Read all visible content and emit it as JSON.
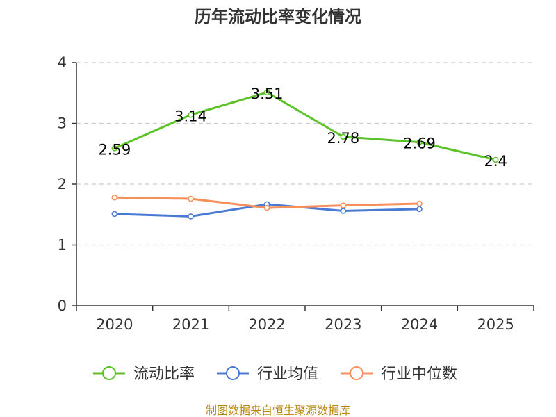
{
  "chart_data": {
    "type": "line",
    "title": "历年流动比率变化情况",
    "categories": [
      "2020",
      "2021",
      "2022",
      "2023",
      "2024",
      "2025"
    ],
    "ylim": [
      0,
      4
    ],
    "yticks": [
      0,
      1,
      2,
      3,
      4
    ],
    "grid": true,
    "legend_position": "bottom",
    "series": [
      {
        "name": "流动比率",
        "color": "#5bc227",
        "values": [
          2.59,
          3.14,
          3.51,
          2.78,
          2.69,
          2.4
        ],
        "labels": [
          "2.59",
          "3.14",
          "3.51",
          "2.78",
          "2.69",
          "2.4"
        ]
      },
      {
        "name": "行业均值",
        "color": "#4a7bd4",
        "values": [
          1.51,
          1.47,
          1.67,
          1.56,
          1.59,
          null
        ]
      },
      {
        "name": "行业中位数",
        "color": "#f5905a",
        "values": [
          1.78,
          1.76,
          1.61,
          1.65,
          1.68,
          null
        ]
      }
    ],
    "source": "制图数据来自恒生聚源数据库"
  }
}
